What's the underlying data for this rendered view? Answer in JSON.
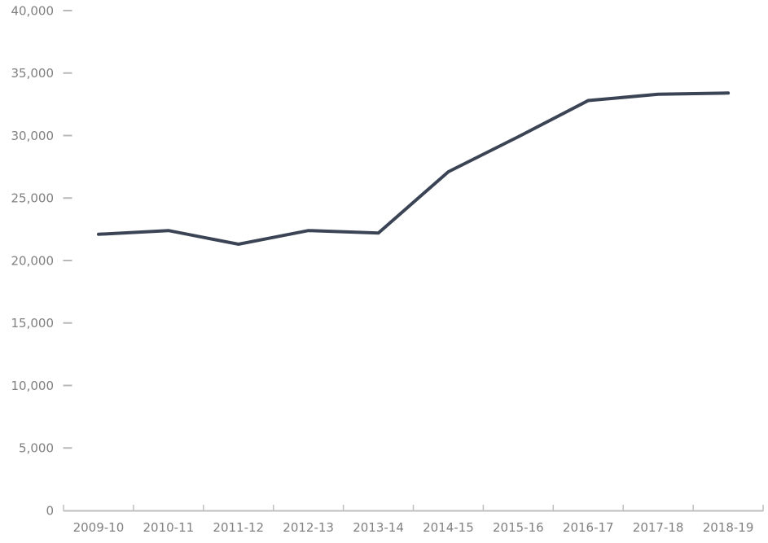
{
  "chart_data": {
    "type": "line",
    "title": "",
    "xlabel": "",
    "ylabel": "",
    "categories": [
      "2009-10",
      "2010-11",
      "2011-12",
      "2012-13",
      "2013-14",
      "2014-15",
      "2015-16",
      "2016-17",
      "2017-18",
      "2018-19"
    ],
    "series": [
      {
        "name": "series-1",
        "values": [
          22100,
          22400,
          21300,
          22400,
          22200,
          27100,
          29900,
          32800,
          33300,
          33400
        ]
      }
    ],
    "ylim": [
      0,
      40000
    ],
    "ytick_step": 5000,
    "ytick_labels": [
      "0",
      "5,000",
      "10,000",
      "15,000",
      "20,000",
      "25,000",
      "30,000",
      "35,000",
      "40,000"
    ],
    "grid": false,
    "legend_position": "none",
    "colors": {
      "line": "#3b4454",
      "axis": "#bfbfbf",
      "tick": "#b8b8b8",
      "label_text": "#808080",
      "background": "#ffffff"
    },
    "font_size_px": 15
  }
}
